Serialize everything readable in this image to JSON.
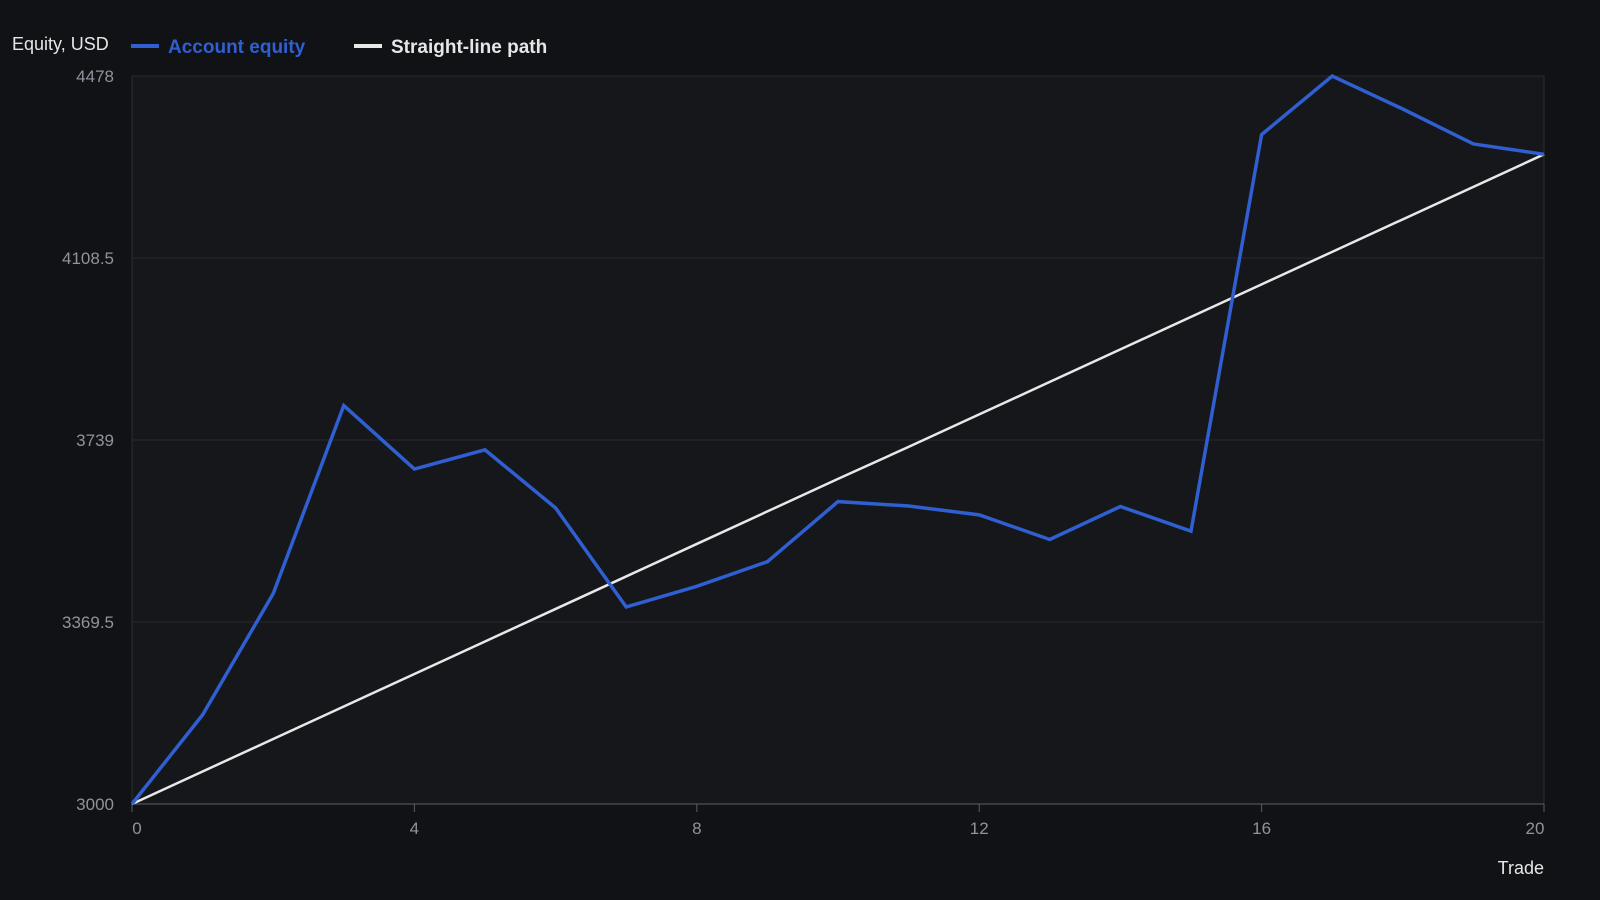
{
  "chart_data": {
    "type": "line",
    "ylabel": "Equity, USD",
    "xlabel": "Trade",
    "x": [
      0,
      1,
      2,
      3,
      4,
      5,
      6,
      7,
      8,
      9,
      10,
      11,
      12,
      13,
      14,
      15,
      16,
      17,
      18,
      19,
      20
    ],
    "series": [
      {
        "name": "Account equity",
        "color": "#2f5fd0",
        "values": [
          3000,
          3181,
          3427,
          3809,
          3680,
          3719,
          3601,
          3400,
          3442,
          3492,
          3614,
          3605,
          3587,
          3537,
          3604,
          3554,
          4359,
          4478,
          4411,
          4340,
          4319
        ]
      },
      {
        "name": "Straight-line path",
        "color": "#e8e8e8",
        "values": [
          3000,
          3066,
          3132,
          3198,
          3264,
          3330,
          3396,
          3462,
          3528,
          3594,
          3660,
          3725,
          3791,
          3857,
          3923,
          3989,
          4055,
          4121,
          4187,
          4253,
          4319
        ]
      }
    ],
    "xlim": [
      0,
      20
    ],
    "ylim": [
      3000,
      4478
    ],
    "xticks": [
      "0",
      "4",
      "8",
      "12",
      "16",
      "20"
    ],
    "yticks": [
      "3000",
      "3369.5",
      "3739",
      "4108.5",
      "4478"
    ],
    "grid": true,
    "legend_position": "top-left",
    "background": "#101216",
    "plot_background": "#15171b"
  }
}
